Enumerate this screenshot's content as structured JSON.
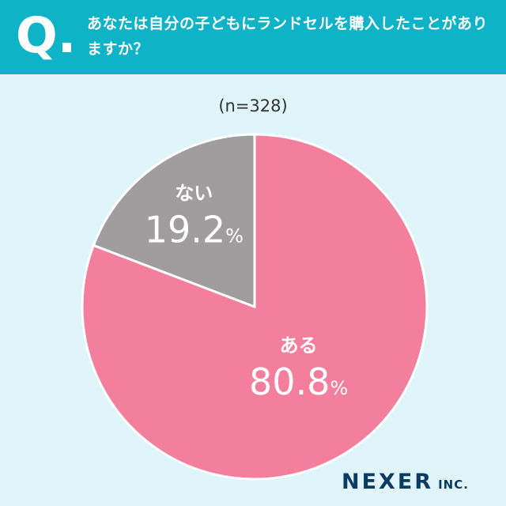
{
  "header": {
    "q_mark": "Q.",
    "question": "あなたは自分の子どもにランドセルを購入したことがありますか？"
  },
  "sample_note": "(n=328)",
  "colors": {
    "header_bg": "#0fb3c8",
    "page_bg": "#dff5fa",
    "yes_slice": "#f47f9c",
    "no_slice": "#a09d9e",
    "logo": "#0b3a63"
  },
  "chart_data": {
    "type": "pie",
    "slices": [
      {
        "label": "ある",
        "value": 80.8,
        "value_text": "80.8",
        "unit": "%",
        "color": "#f47f9c"
      },
      {
        "label": "ない",
        "value": 19.2,
        "value_text": "19.2",
        "unit": "%",
        "color": "#a09d9e"
      }
    ]
  },
  "logo": {
    "main": "NEXER",
    "sub": "INC."
  }
}
